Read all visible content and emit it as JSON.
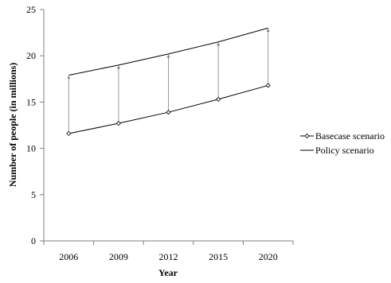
{
  "colors": {
    "line": "#000000",
    "axis": "#7f7f7f",
    "connector": "#7f7f7f",
    "background": "#ffffff"
  },
  "chart_data": {
    "type": "line",
    "title": "",
    "xlabel": "Year",
    "ylabel": "Number of people (in millions)",
    "categories": [
      "2006",
      "2009",
      "2012",
      "2015",
      "2020"
    ],
    "ylim": [
      0,
      25
    ],
    "yticks": [
      "0",
      "5",
      "10",
      "15",
      "20",
      "25"
    ],
    "grid": false,
    "legend_position": "right",
    "series": [
      {
        "name": "Basecase scenario",
        "values": [
          11.6,
          12.7,
          13.9,
          15.3,
          16.8
        ],
        "marker": "diamond-open"
      },
      {
        "name": "Policy scenario",
        "values": [
          17.9,
          19.0,
          20.2,
          21.5,
          23.0
        ],
        "marker": "arrowhead"
      }
    ],
    "annotations": "vertical arrows from basecase to policy values at each year"
  }
}
